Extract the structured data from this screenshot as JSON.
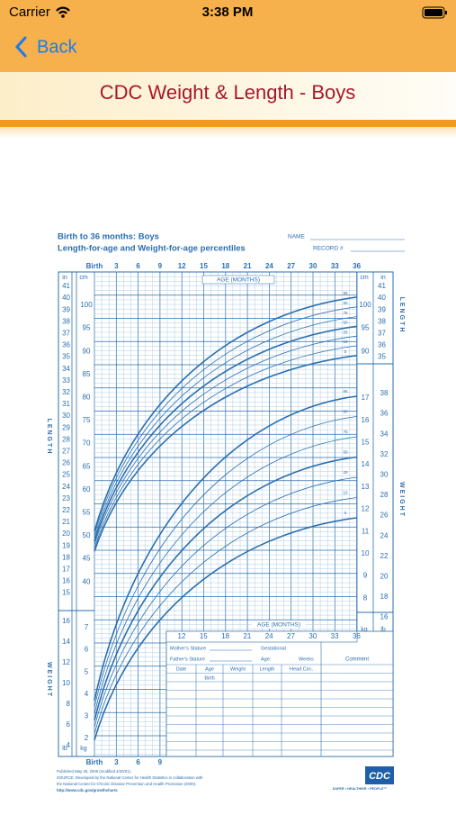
{
  "status_bar": {
    "carrier": "Carrier",
    "time": "3:38 PM"
  },
  "nav": {
    "back": "Back",
    "title": "CDC Weight & Length - Boys"
  },
  "chart": {
    "heading": "Birth to 36 months: Boys",
    "subheading": "Length-for-age and Weight-for-age percentiles",
    "name_label": "NAME",
    "record_label": "RECORD #",
    "age_labels": [
      "Birth",
      "3",
      "6",
      "9",
      "12",
      "15",
      "18",
      "21",
      "24",
      "27",
      "30",
      "33",
      "36"
    ],
    "age_axis_title": "AGE (MONTHS)",
    "in_label": "in",
    "cm_label": "cm",
    "lb_label": "lb",
    "kg_label": "kg",
    "length_side_label": "LENGTH",
    "weight_side_label": "WEIGHT",
    "length_in_left": [
      41,
      40,
      39,
      38,
      37,
      36,
      35,
      34,
      33,
      32,
      31,
      30,
      29,
      28,
      27,
      26,
      25,
      24,
      23,
      22,
      21,
      20,
      19,
      18,
      17,
      16,
      15
    ],
    "length_cm_left": [
      100,
      95,
      90,
      85,
      80,
      75,
      70,
      65,
      60,
      55,
      50,
      45,
      40
    ],
    "length_in_right": [
      41,
      40,
      39,
      38,
      37,
      36,
      35
    ],
    "length_cm_right": [
      100,
      95,
      90
    ],
    "weight_lb_left": [
      16,
      14,
      12,
      10,
      8,
      6,
      4
    ],
    "weight_kg_left": [
      7,
      6,
      5,
      4,
      3,
      2
    ],
    "weight_kg_right": [
      17,
      16,
      15,
      14,
      13,
      12,
      11,
      10,
      9,
      8
    ],
    "weight_lb_right": [
      38,
      36,
      34,
      32,
      30,
      28,
      26,
      24,
      22,
      20,
      18,
      16
    ],
    "percentiles": [
      95,
      90,
      75,
      50,
      25,
      10,
      5
    ],
    "lower_age_labels": [
      "12",
      "15",
      "18",
      "21",
      "24",
      "27",
      "30",
      "33",
      "36"
    ],
    "form": {
      "mothers_stature": "Mother's Stature",
      "fathers_stature": "Father's Stature",
      "gestational": "Gestational",
      "age": "Age:",
      "weeks": "Weeks",
      "comment": "Comment",
      "columns": [
        "Date",
        "Age",
        "Weight",
        "Length",
        "Head Circ."
      ],
      "birth": "Birth"
    },
    "bottom_age_labels": [
      "Birth",
      "3",
      "6",
      "9"
    ],
    "footer": [
      "Published May 30, 2000 (modified 4/20/01).",
      "SOURCE: Developed by the National Center for Health Statistics in collaboration with",
      "the National Center for Chronic Disease Prevention and Health Promotion (2000).",
      "http://www.cdc.gov/growthcharts"
    ],
    "logo": "CDC",
    "logo_tagline": "SAFER • HEALTHIER • PEOPLE™"
  }
}
